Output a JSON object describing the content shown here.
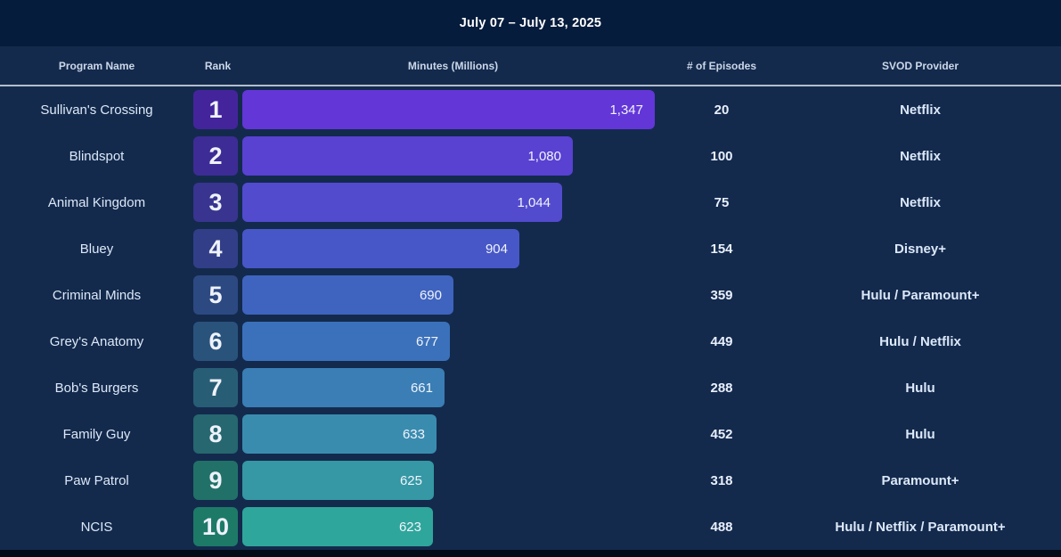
{
  "title": "July 07 – July 13, 2025",
  "columns": {
    "program": "Program Name",
    "rank": "Rank",
    "minutes": "Minutes (Millions)",
    "episodes": "# of Episodes",
    "provider": "SVOD Provider"
  },
  "colors": {
    "title_bar_bg": "#061c3c",
    "body_bg": "#132a4d",
    "header_text": "#ccd7e8",
    "divider": "#b3bdcc",
    "value_text": "#f0f3fc"
  },
  "rows": [
    {
      "program": "Sullivan's Crossing",
      "rank": "1",
      "minutes": 1347,
      "minutes_label": "1,347",
      "episodes": "20",
      "provider": "Netflix",
      "bar_color": "#6336d8",
      "rank_color": "#44249b"
    },
    {
      "program": "Blindspot",
      "rank": "2",
      "minutes": 1080,
      "minutes_label": "1,080",
      "episodes": "100",
      "provider": "Netflix",
      "bar_color": "#5941d2",
      "rank_color": "#3d2c95"
    },
    {
      "program": "Animal Kingdom",
      "rank": "3",
      "minutes": 1044,
      "minutes_label": "1,044",
      "episodes": "75",
      "provider": "Netflix",
      "bar_color": "#524bce",
      "rank_color": "#38348f"
    },
    {
      "program": "Bluey",
      "rank": "4",
      "minutes": 904,
      "minutes_label": "904",
      "episodes": "154",
      "provider": "Disney+",
      "bar_color": "#4757c7",
      "rank_color": "#323e88"
    },
    {
      "program": "Criminal Minds",
      "rank": "5",
      "minutes": 690,
      "minutes_label": "690",
      "episodes": "359",
      "provider": "Hulu / Paramount+",
      "bar_color": "#3f64bf",
      "rank_color": "#2c4982"
    },
    {
      "program": "Grey's Anatomy",
      "rank": "6",
      "minutes": 677,
      "minutes_label": "677",
      "episodes": "449",
      "provider": "Hulu / Netflix",
      "bar_color": "#3b71ba",
      "rank_color": "#2a537c"
    },
    {
      "program": "Bob's Burgers",
      "rank": "7",
      "minutes": 661,
      "minutes_label": "661",
      "episodes": "288",
      "provider": "Hulu",
      "bar_color": "#3a7eb5",
      "rank_color": "#285d76"
    },
    {
      "program": "Family Guy",
      "rank": "8",
      "minutes": 633,
      "minutes_label": "633",
      "episodes": "452",
      "provider": "Hulu",
      "bar_color": "#3a8caf",
      "rank_color": "#266770"
    },
    {
      "program": "Paw Patrol",
      "rank": "9",
      "minutes": 625,
      "minutes_label": "625",
      "episodes": "318",
      "provider": "Paramount+",
      "bar_color": "#3598a4",
      "rank_color": "#217169"
    },
    {
      "program": "NCIS",
      "rank": "10",
      "minutes": 623,
      "minutes_label": "623",
      "episodes": "488",
      "provider": "Hulu / Netflix / Paramount+",
      "bar_color": "#2fa69b",
      "rank_color": "#1d7a67"
    }
  ],
  "chart_data": {
    "type": "bar",
    "orientation": "horizontal",
    "title": "July 07 – July 13, 2025",
    "xlabel": "Minutes (Millions)",
    "ylabel": "Program Name",
    "categories": [
      "Sullivan's Crossing",
      "Blindspot",
      "Animal Kingdom",
      "Bluey",
      "Criminal Minds",
      "Grey's Anatomy",
      "Bob's Burgers",
      "Family Guy",
      "Paw Patrol",
      "NCIS"
    ],
    "values": [
      1347,
      1080,
      1044,
      904,
      690,
      677,
      661,
      633,
      625,
      623
    ],
    "max_value": 1347,
    "xlim": [
      0,
      1347
    ],
    "grid": false,
    "legend": false
  }
}
